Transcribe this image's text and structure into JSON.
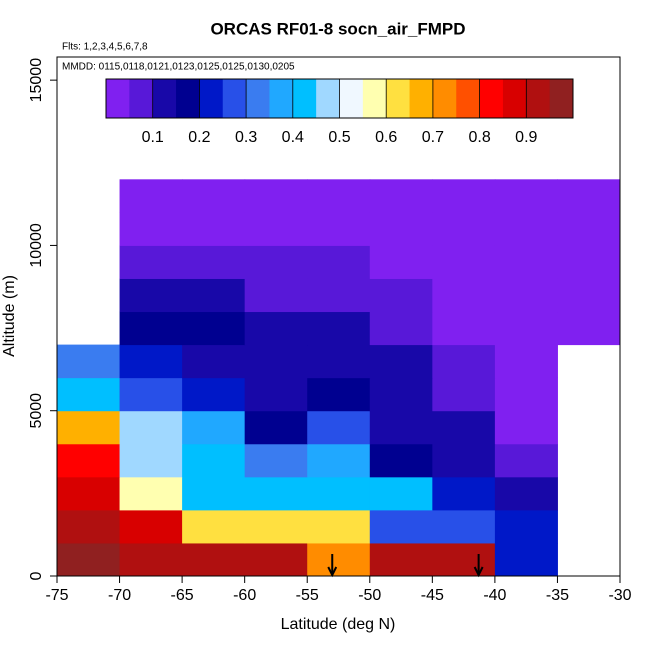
{
  "chart_data": {
    "type": "heatmap",
    "title": "ORCAS RF01-8 socn_air_FMPD",
    "subtitle": "Flts: 1,2,3,4,5,6,7,8",
    "annotation": "MMDD: 0115,0118,0121,0123,0125,0125,0130,0205",
    "xlabel": "Latitude (deg N)",
    "ylabel": "Altitude (m)",
    "xlim": [
      -75,
      -30
    ],
    "ylim": [
      0,
      15700
    ],
    "xticks": [
      -75,
      -70,
      -65,
      -60,
      -55,
      -50,
      -45,
      -40,
      -35,
      -30
    ],
    "yticks": [
      0,
      5000,
      10000,
      15000
    ],
    "x_edges": [
      -75,
      -70,
      -65,
      -60,
      -55,
      -50,
      -45,
      -40,
      -35,
      -30
    ],
    "y_edges": [
      0,
      1000,
      2000,
      3000,
      4000,
      5000,
      6000,
      7000,
      8000,
      9000,
      10000,
      11000,
      12000
    ],
    "z": [
      [
        0.95,
        0.92,
        0.92,
        0.92,
        0.7,
        0.92,
        0.92,
        0.2,
        null
      ],
      [
        0.9,
        0.88,
        0.62,
        0.62,
        0.62,
        0.25,
        0.25,
        0.22,
        null
      ],
      [
        0.85,
        0.55,
        0.4,
        0.4,
        0.42,
        0.4,
        0.2,
        0.1,
        null
      ],
      [
        0.8,
        0.47,
        0.42,
        0.3,
        0.35,
        0.18,
        0.12,
        0.05,
        null
      ],
      [
        0.68,
        0.45,
        0.35,
        0.18,
        0.25,
        0.12,
        0.1,
        0.03,
        null
      ],
      [
        0.42,
        0.25,
        0.22,
        0.12,
        0.15,
        0.1,
        0.05,
        0.02,
        null
      ],
      [
        0.33,
        0.2,
        0.12,
        0.12,
        0.12,
        0.1,
        0.05,
        0.02,
        null
      ],
      [
        null,
        0.15,
        0.15,
        0.1,
        0.1,
        0.08,
        0.03,
        0.02,
        0.02
      ],
      [
        null,
        0.1,
        0.1,
        0.08,
        0.08,
        0.05,
        0.02,
        0.02,
        0.02
      ],
      [
        null,
        0.07,
        0.05,
        0.05,
        0.05,
        0.03,
        0.02,
        0.02,
        0.02
      ],
      [
        null,
        0.02,
        0.02,
        0.02,
        0.02,
        0.02,
        0.02,
        0.02,
        0.02
      ],
      [
        null,
        0.02,
        0.02,
        0.02,
        0.02,
        0.02,
        0.02,
        0.02,
        0.02
      ]
    ],
    "zlim": [
      0,
      1
    ],
    "colorbar_ticks": [
      0.1,
      0.2,
      0.3,
      0.4,
      0.5,
      0.6,
      0.7,
      0.8,
      0.9
    ],
    "palette": [
      "#8020f0",
      "#5818d8",
      "#1808a8",
      "#000090",
      "#0018c8",
      "#2850e8",
      "#3a7cf0",
      "#20a8ff",
      "#00bfff",
      "#a0d8ff",
      "#f0f8ff",
      "#ffffb0",
      "#ffe040",
      "#ffb000",
      "#ff8c00",
      "#ff5000",
      "#ff0000",
      "#d80000",
      "#b01010",
      "#902020"
    ],
    "arrows_x": [
      -53,
      -41.3
    ]
  }
}
